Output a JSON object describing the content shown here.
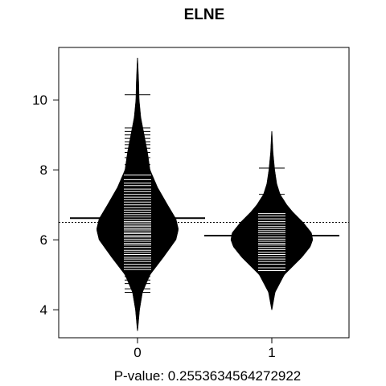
{
  "chart_data": {
    "type": "beanplot",
    "title": "ELNE",
    "xlabel": "P-value: 0.2553634564272922",
    "ylabel": "",
    "categories": [
      "0",
      "1"
    ],
    "ylim": [
      3.2,
      11.5
    ],
    "yticks": [
      4,
      6,
      8,
      10
    ],
    "overall_mean": 6.5,
    "series": [
      {
        "category": "0",
        "mean": 6.62,
        "range": [
          3.4,
          11.2
        ],
        "density_profile": [
          [
            3.4,
            0.005
          ],
          [
            4.0,
            0.05
          ],
          [
            4.5,
            0.12
          ],
          [
            5.0,
            0.3
          ],
          [
            5.5,
            0.62
          ],
          [
            6.0,
            0.92
          ],
          [
            6.3,
            0.98
          ],
          [
            6.6,
            0.92
          ],
          [
            7.0,
            0.72
          ],
          [
            7.5,
            0.48
          ],
          [
            8.0,
            0.3
          ],
          [
            8.5,
            0.24
          ],
          [
            9.0,
            0.16
          ],
          [
            9.5,
            0.08
          ],
          [
            10.0,
            0.04
          ],
          [
            10.5,
            0.03
          ],
          [
            11.2,
            0.005
          ]
        ],
        "observations": [
          4.5,
          4.6,
          4.75,
          4.85,
          4.95,
          5.05,
          5.15,
          5.22,
          5.3,
          5.38,
          5.45,
          5.5,
          5.58,
          5.65,
          5.7,
          5.78,
          5.85,
          5.9,
          5.96,
          6.02,
          6.08,
          6.12,
          6.18,
          6.22,
          6.28,
          6.32,
          6.38,
          6.42,
          6.48,
          6.52,
          6.58,
          6.65,
          6.72,
          6.78,
          6.85,
          6.92,
          7.0,
          7.08,
          7.15,
          7.22,
          7.3,
          7.38,
          7.45,
          7.55,
          7.62,
          7.72,
          7.85,
          8.0,
          8.15,
          8.35,
          8.5,
          8.62,
          8.72,
          8.8,
          8.9,
          9.0,
          9.1,
          9.2,
          10.15
        ]
      },
      {
        "category": "1",
        "mean": 6.12,
        "range": [
          4.0,
          9.1
        ],
        "density_profile": [
          [
            4.0,
            0.005
          ],
          [
            4.5,
            0.08
          ],
          [
            5.0,
            0.3
          ],
          [
            5.5,
            0.72
          ],
          [
            5.8,
            0.92
          ],
          [
            6.0,
            0.98
          ],
          [
            6.2,
            0.95
          ],
          [
            6.5,
            0.75
          ],
          [
            6.8,
            0.5
          ],
          [
            7.0,
            0.36
          ],
          [
            7.3,
            0.2
          ],
          [
            7.6,
            0.12
          ],
          [
            8.0,
            0.07
          ],
          [
            8.5,
            0.03
          ],
          [
            9.1,
            0.005
          ]
        ],
        "observations": [
          5.05,
          5.12,
          5.2,
          5.3,
          5.38,
          5.45,
          5.52,
          5.58,
          5.65,
          5.72,
          5.78,
          5.85,
          5.9,
          5.96,
          6.02,
          6.08,
          6.14,
          6.2,
          6.26,
          6.32,
          6.38,
          6.45,
          6.52,
          6.6,
          6.68,
          6.75,
          7.3,
          8.05
        ]
      }
    ]
  }
}
